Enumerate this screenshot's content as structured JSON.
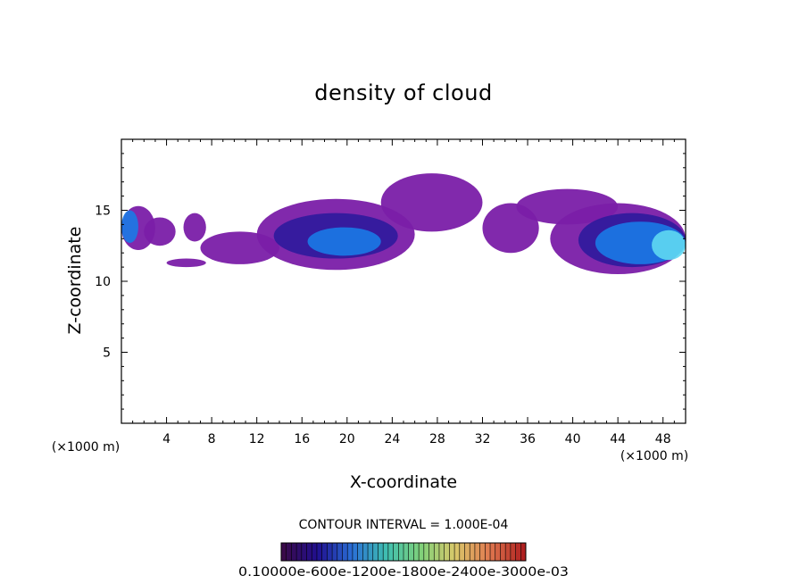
{
  "chart_data": {
    "type": "heatmap",
    "title": "density of cloud",
    "xlabel": "X-coordinate",
    "ylabel": "Z-coordinate",
    "x_unit": "(×1000 m)",
    "xlim": [
      0,
      50
    ],
    "ylim": [
      0,
      20
    ],
    "x_ticks": [
      4,
      8,
      12,
      16,
      20,
      24,
      28,
      32,
      36,
      40,
      44,
      48
    ],
    "y_ticks": [
      5,
      10,
      15
    ],
    "x_tick_labels": [
      "4",
      "8",
      "12",
      "16",
      "20",
      "24",
      "28",
      "32",
      "36",
      "40",
      "44",
      "48"
    ],
    "y_tick_labels": [
      "5",
      "10",
      "15"
    ],
    "contour_interval_text": "CONTOUR INTERVAL = 1.000E-04",
    "colorbar_labels_text": "0.10000e-600e-1200e-1800e-2400e-3000e-03",
    "colors": {
      "background": "#ffffff",
      "axes": "#000000",
      "level_low": "#7a1ea8",
      "level_mid": "#2e1a9c",
      "level_high": "#1a7ae6",
      "level_peak": "#5fd8f2"
    },
    "cloud_regions": [
      {
        "x": [
          0.0,
          3.0
        ],
        "z": [
          12.2,
          15.3
        ],
        "level": 1
      },
      {
        "x": [
          0.0,
          1.5
        ],
        "z": [
          12.7,
          15.0
        ],
        "level": 3
      },
      {
        "x": [
          2.0,
          4.8
        ],
        "z": [
          12.5,
          14.5
        ],
        "level": 1
      },
      {
        "x": [
          5.5,
          7.5
        ],
        "z": [
          12.8,
          14.8
        ],
        "level": 1
      },
      {
        "x": [
          4.0,
          7.5
        ],
        "z": [
          11.0,
          11.6
        ],
        "level": 1
      },
      {
        "x": [
          7.0,
          14.0
        ],
        "z": [
          11.2,
          13.5
        ],
        "level": 1
      },
      {
        "x": [
          12.0,
          26.0
        ],
        "z": [
          10.8,
          15.8
        ],
        "level": 1
      },
      {
        "x": [
          13.5,
          24.5
        ],
        "z": [
          11.6,
          14.8
        ],
        "level": 2
      },
      {
        "x": [
          16.5,
          23.0
        ],
        "z": [
          11.8,
          13.8
        ],
        "level": 3
      },
      {
        "x": [
          23.0,
          32.0
        ],
        "z": [
          13.5,
          17.6
        ],
        "level": 1
      },
      {
        "x": [
          32.0,
          37.0
        ],
        "z": [
          12.0,
          15.5
        ],
        "level": 1
      },
      {
        "x": [
          35.0,
          44.0
        ],
        "z": [
          14.0,
          16.5
        ],
        "level": 1
      },
      {
        "x": [
          38.0,
          50.0
        ],
        "z": [
          10.5,
          15.5
        ],
        "level": 1
      },
      {
        "x": [
          40.5,
          50.0
        ],
        "z": [
          11.0,
          14.8
        ],
        "level": 2
      },
      {
        "x": [
          42.0,
          50.0
        ],
        "z": [
          11.2,
          14.2
        ],
        "level": 3
      },
      {
        "x": [
          47.0,
          50.0
        ],
        "z": [
          11.5,
          13.6
        ],
        "level": 4
      }
    ],
    "colorbar": {
      "segments": 48,
      "stops": [
        "#3a0a4a",
        "#201090",
        "#2a6fd6",
        "#3fbfb0",
        "#7fd17a",
        "#d9c86a",
        "#e07a50",
        "#b02020"
      ]
    }
  }
}
